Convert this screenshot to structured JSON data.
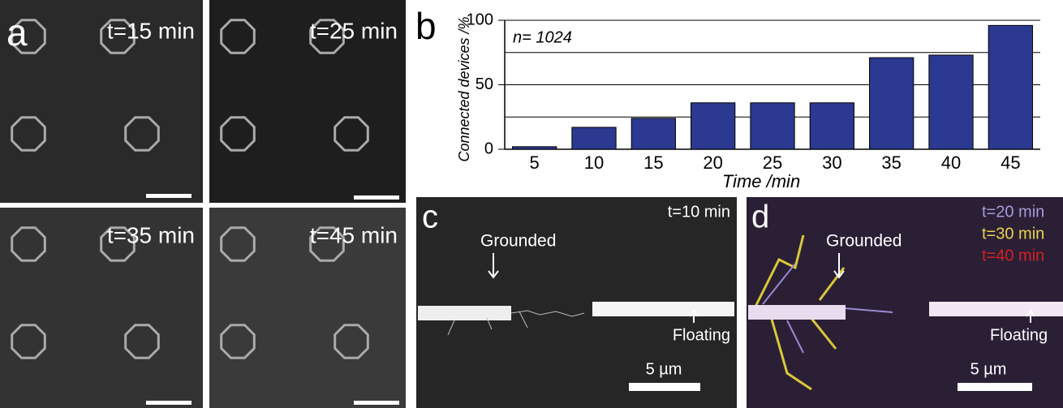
{
  "chart_data": {
    "type": "bar",
    "panel_label": "b",
    "annotation": "n= 1024",
    "y_label": "Connected devices /%",
    "x_label": "Time /min",
    "categories": [
      "5",
      "10",
      "15",
      "20",
      "25",
      "30",
      "35",
      "40",
      "45"
    ],
    "values": [
      2,
      17,
      24,
      36,
      36,
      36,
      71,
      73,
      96
    ],
    "color": "#2b3990",
    "ylim": [
      0,
      100
    ],
    "yticks": [
      0,
      50,
      100
    ],
    "ygrid": [
      25,
      50,
      75,
      100
    ],
    "grid": true
  },
  "panel_a": {
    "label": "a",
    "times": [
      "t=15 min",
      "t=25 min",
      "t=35 min",
      "t=45 min"
    ]
  },
  "panel_c": {
    "label": "c",
    "time": "t=10 min",
    "grounded": "Grounded",
    "floating": "Floating",
    "scale": "5 µm"
  },
  "panel_d": {
    "label": "d",
    "times": [
      "t=20 min",
      "t=30 min",
      "t=40 min"
    ],
    "grounded": "Grounded",
    "floating": "Floating",
    "scale": "5 µm"
  }
}
